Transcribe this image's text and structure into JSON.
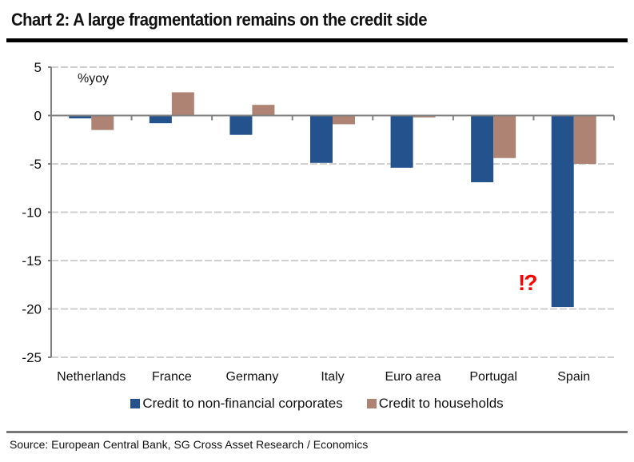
{
  "title": "Chart 2: A large fragmentation remains on the credit side",
  "source": "Source: European Central Bank, SG Cross Asset Research / Economics",
  "annotation": "!?",
  "colors": {
    "corporates": "#23528c",
    "households": "#ae8374",
    "annotation": "#ff0000"
  },
  "chart_data": {
    "type": "bar",
    "title": "Chart 2: A large fragmentation remains on the credit side",
    "unit_label": "%yoy",
    "xlabel": "",
    "ylabel": "%yoy",
    "categories": [
      "Netherlands",
      "France",
      "Germany",
      "Italy",
      "Euro area",
      "Portugal",
      "Spain"
    ],
    "series": [
      {
        "name": "Credit to non-financial corporates",
        "color": "#23528c",
        "values": [
          -0.3,
          -0.8,
          -2.0,
          -4.9,
          -5.4,
          -6.9,
          -19.8
        ]
      },
      {
        "name": "Credit to households",
        "color": "#ae8374",
        "values": [
          -1.5,
          2.4,
          1.1,
          -0.9,
          -0.2,
          -4.4,
          -5.0
        ]
      }
    ],
    "ylim": [
      -25,
      5
    ],
    "yticks": [
      5,
      0,
      -5,
      -10,
      -15,
      -20,
      -25
    ],
    "grid": true,
    "legend": "bottom",
    "annotations": [
      {
        "text": "!?",
        "category": "Spain",
        "color": "#ff0000"
      }
    ]
  }
}
